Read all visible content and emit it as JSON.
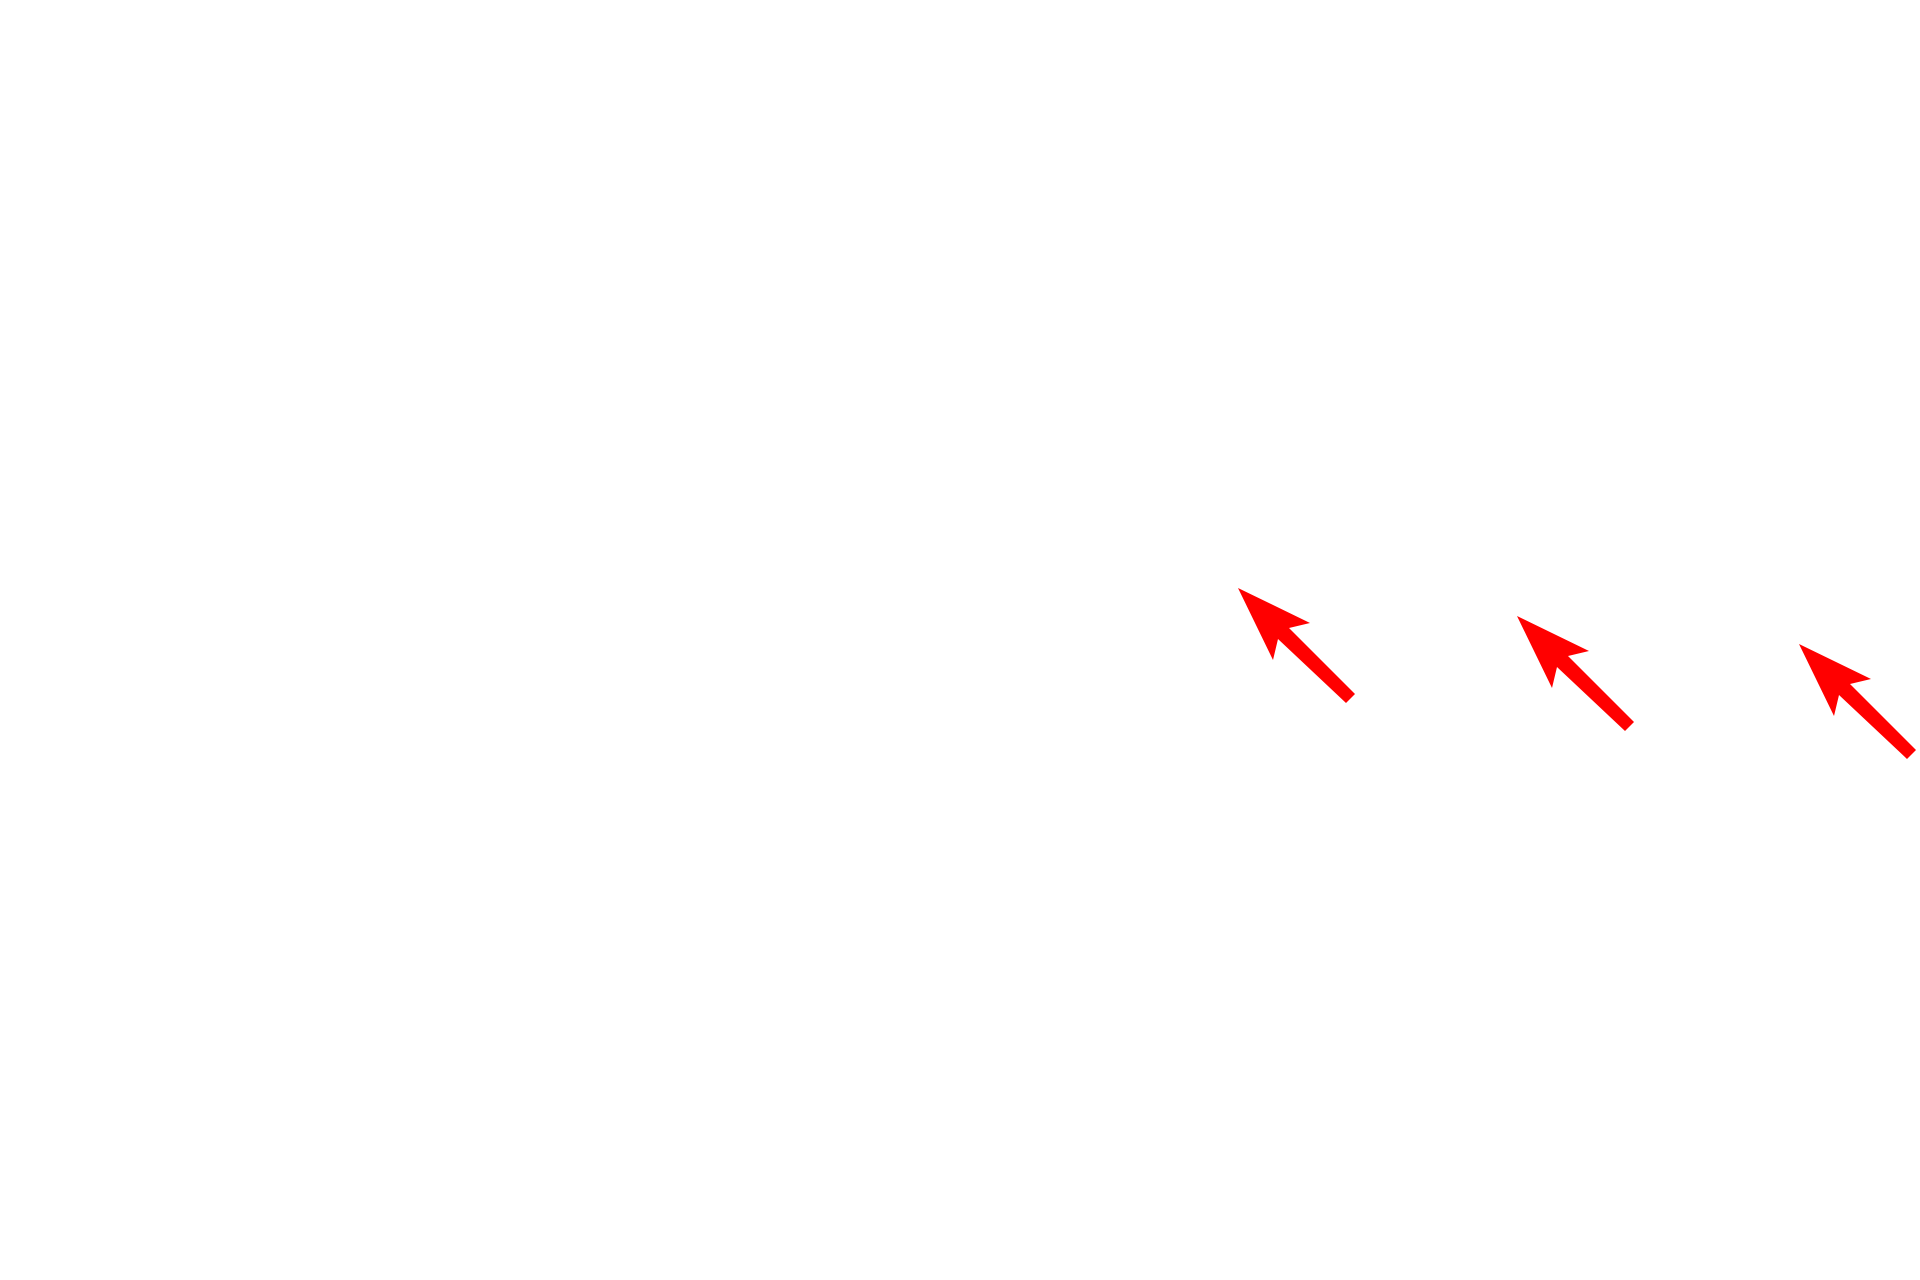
{
  "canvas": {
    "background": "#ffffff"
  },
  "annotations": {
    "arrow_color": "#ff0000",
    "arrow_icon": "arrow-up-left",
    "arrows": [
      {
        "name": "arrow-1",
        "direction": "up-left"
      },
      {
        "name": "arrow-2",
        "direction": "up-left"
      },
      {
        "name": "arrow-3",
        "direction": "up-left"
      }
    ]
  }
}
